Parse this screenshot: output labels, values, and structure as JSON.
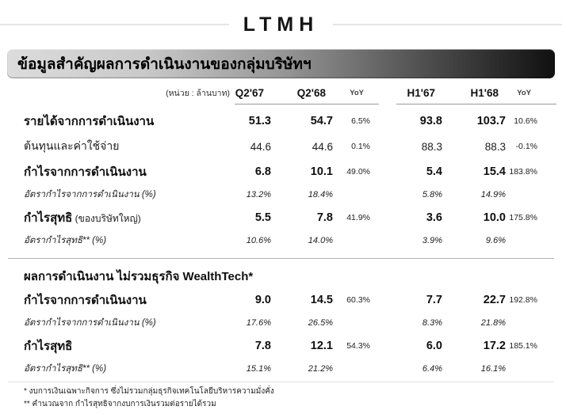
{
  "page": {
    "title": "LTMH"
  },
  "banner": {
    "title": "ข้อมูลสำคัญผลการดำเนินงานของกลุ่มบริษัทฯ"
  },
  "colors": {
    "banner_gradient_start": "#dcdcdc",
    "banner_gradient_end": "#101010",
    "text": "#1a1a1a",
    "header_rule": "#e4e4e9",
    "column_underline": "#9b9b9b",
    "section_divider": "#b4b4b4"
  },
  "table": {
    "unit_label": "(หน่วย : ล้านบาท)",
    "columns": [
      "Q2'67",
      "Q2'68",
      "YoY",
      "H1'67",
      "H1'68",
      "YoY"
    ],
    "sections": [
      {
        "header": null,
        "rows": [
          {
            "label": "รายได้จากการดำเนินงาน",
            "style": "bold",
            "values": [
              "51.3",
              "54.7",
              "6.5%",
              "93.8",
              "103.7",
              "10.6%"
            ]
          },
          {
            "label": "ต้นทุนและค่าใช้จ่าย",
            "style": "normal",
            "values": [
              "44.6",
              "44.6",
              "0.1%",
              "88.3",
              "88.3",
              "-0.1%"
            ]
          },
          {
            "label": "กำไรจากการดำเนินงาน",
            "style": "bold",
            "values": [
              "6.8",
              "10.1",
              "49.0%",
              "5.4",
              "15.4",
              "183.8%"
            ]
          },
          {
            "label": "อัตรากำไรจากการดำเนินงาน (%)",
            "style": "italic",
            "values": [
              "13.2%",
              "18.4%",
              "",
              "5.8%",
              "14.9%",
              ""
            ]
          },
          {
            "label": "กำไรสุทธิ",
            "sublabel": "(ของบริษัทใหญ่)",
            "style": "bold",
            "values": [
              "5.5",
              "7.8",
              "41.9%",
              "3.6",
              "10.0",
              "175.8%"
            ]
          },
          {
            "label": "อัตรากำไรสุทธิ** (%)",
            "style": "italic",
            "values": [
              "10.6%",
              "14.0%",
              "",
              "3.9%",
              "9.6%",
              ""
            ]
          }
        ]
      },
      {
        "header": "ผลการดำเนินงาน ไม่รวมธุรกิจ WealthTech*",
        "rows": [
          {
            "label": "กำไรจากการดำเนินงาน",
            "style": "bold",
            "values": [
              "9.0",
              "14.5",
              "60.3%",
              "7.7",
              "22.7",
              "192.8%"
            ]
          },
          {
            "label": "อัตรากำไรจากการดำเนินงาน (%)",
            "style": "italic",
            "values": [
              "17.6%",
              "26.5%",
              "",
              "8.3%",
              "21.8%",
              ""
            ]
          },
          {
            "label": "กำไรสุทธิ",
            "style": "bold",
            "values": [
              "7.8",
              "12.1",
              "54.3%",
              "6.0",
              "17.2",
              "185.1%"
            ]
          },
          {
            "label": "อัตรากำไรสุทธิ** (%)",
            "style": "italic",
            "values": [
              "15.1%",
              "21.2%",
              "",
              "6.4%",
              "16.1%",
              ""
            ]
          }
        ]
      }
    ]
  },
  "footnotes": [
    "* งบการเงินเฉพาะกิจการ ซึ่งไม่รวมกลุ่มธุรกิจเทคโนโลยีบริหารความมั่งคั่ง",
    "** คำนวณจาก กำไรสุทธิจากงบการเงินรวมต่อรายได้รวม"
  ]
}
